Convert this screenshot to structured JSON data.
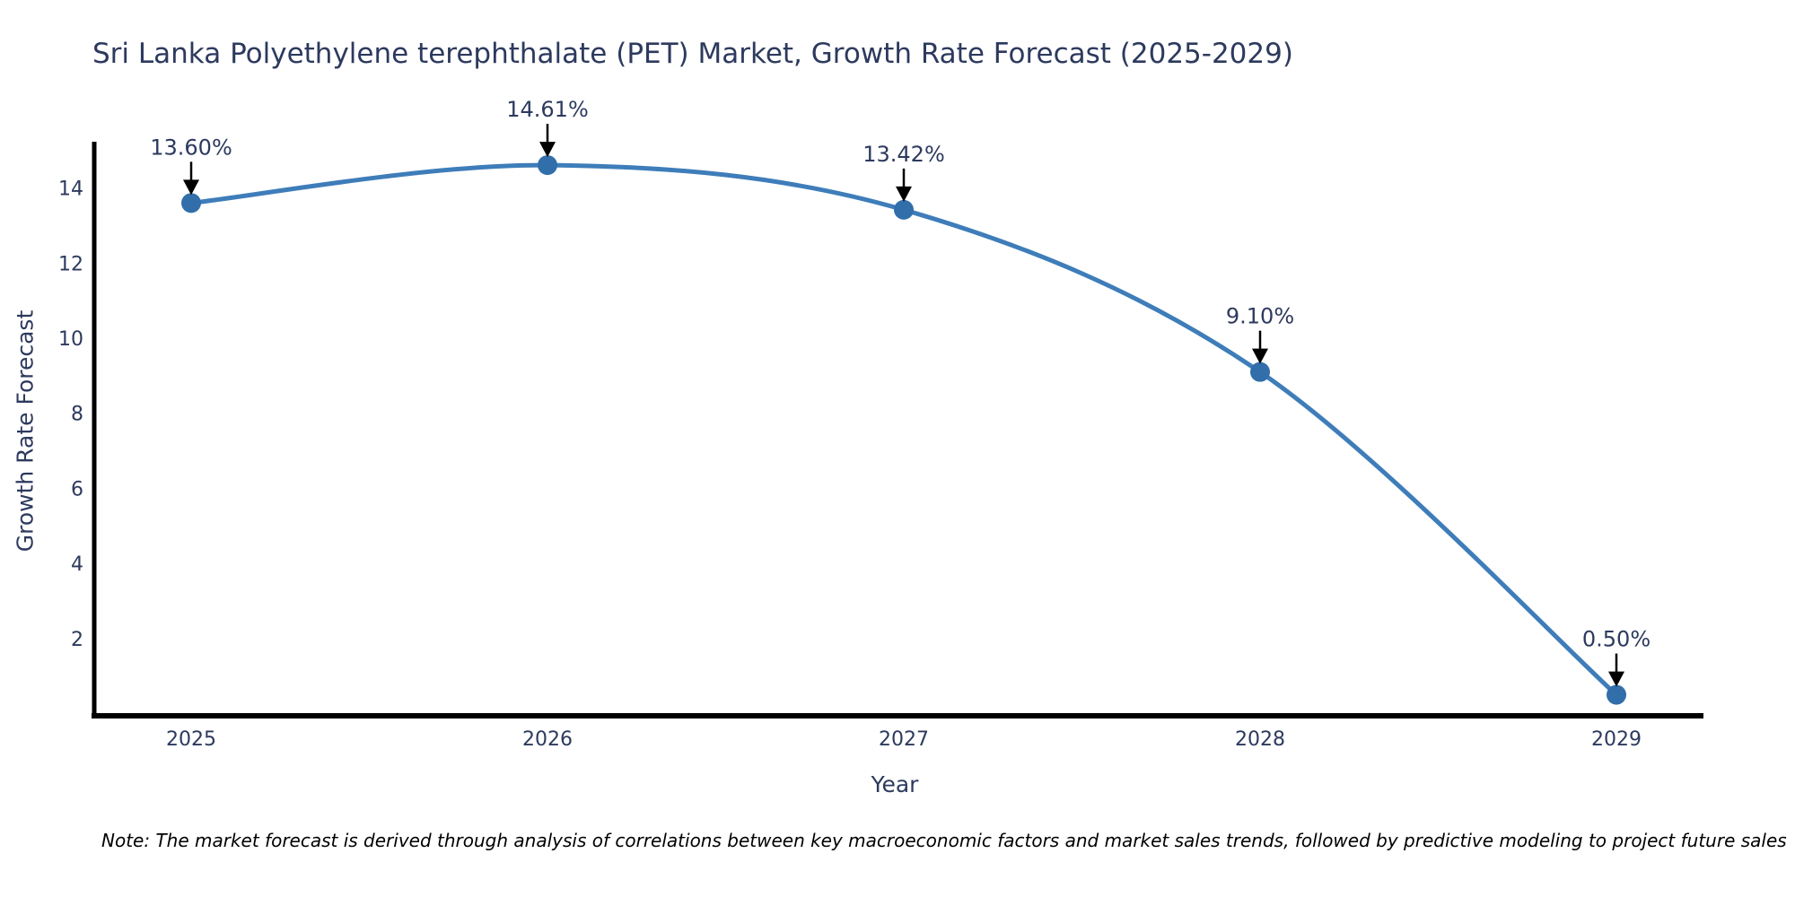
{
  "title": "Sri Lanka Polyethylene terephthalate (PET) Market, Growth Rate Forecast (2025-2029)",
  "note": "Note: The market forecast is derived through analysis of correlations between key macroeconomic factors and market sales trends, followed by predictive modeling to project future sales",
  "chart_data": {
    "type": "line",
    "title": "Sri Lanka Polyethylene terephthalate (PET) Market, Growth Rate Forecast (2025-2029)",
    "xlabel": "Year",
    "ylabel": "Growth Rate Forecast",
    "x": [
      "2025",
      "2026",
      "2027",
      "2028",
      "2029"
    ],
    "series": [
      {
        "name": "Growth Rate Forecast",
        "values": [
          13.6,
          14.61,
          13.42,
          9.1,
          0.5
        ]
      }
    ],
    "point_labels": [
      "13.60%",
      "14.61%",
      "13.42%",
      "9.10%",
      "0.50%"
    ],
    "yticks": [
      2,
      4,
      6,
      8,
      10,
      12,
      14
    ],
    "ylim": [
      0,
      15.2
    ],
    "line_shape": "spline",
    "grid": false,
    "legend_position": "none",
    "colors": {
      "line": "#3e7db9",
      "marker": "#316eaa",
      "axis": "#000000",
      "text": "#2d3a5e",
      "annotation_text": "#2d3a5e",
      "annotation_arrow": "#000000",
      "note_text": "#000000",
      "background": "#ffffff"
    }
  }
}
